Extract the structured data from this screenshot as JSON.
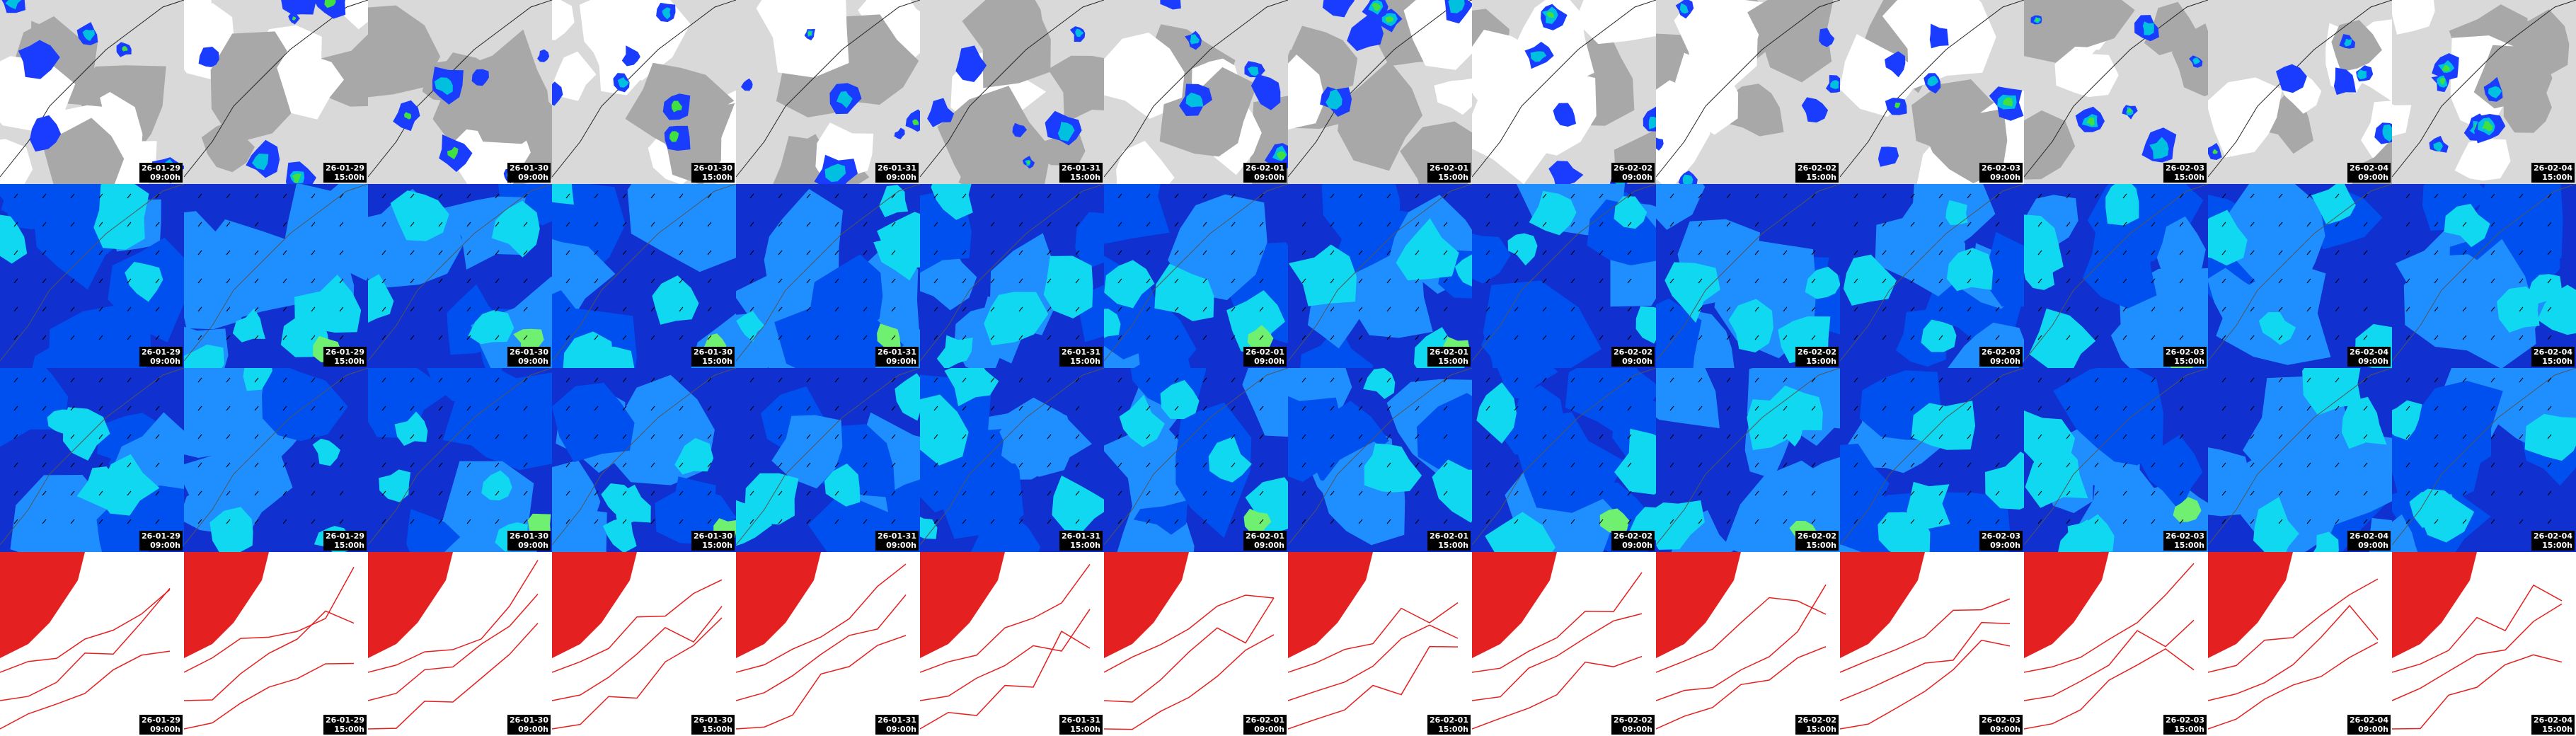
{
  "columns": [
    {
      "date": "26-01-29",
      "time": "09:00h"
    },
    {
      "date": "26-01-29",
      "time": "15:00h"
    },
    {
      "date": "26-01-30",
      "time": "09:00h"
    },
    {
      "date": "26-01-30",
      "time": "15:00h"
    },
    {
      "date": "26-01-31",
      "time": "09:00h"
    },
    {
      "date": "26-01-31",
      "time": "15:00h"
    },
    {
      "date": "26-02-01",
      "time": "09:00h"
    },
    {
      "date": "26-02-01",
      "time": "15:00h"
    },
    {
      "date": "26-02-02",
      "time": "09:00h"
    },
    {
      "date": "26-02-02",
      "time": "15:00h"
    },
    {
      "date": "26-02-03",
      "time": "09:00h"
    },
    {
      "date": "26-02-03",
      "time": "15:00h"
    },
    {
      "date": "26-02-04",
      "time": "09:00h"
    },
    {
      "date": "26-02-04",
      "time": "15:00h"
    }
  ]
}
